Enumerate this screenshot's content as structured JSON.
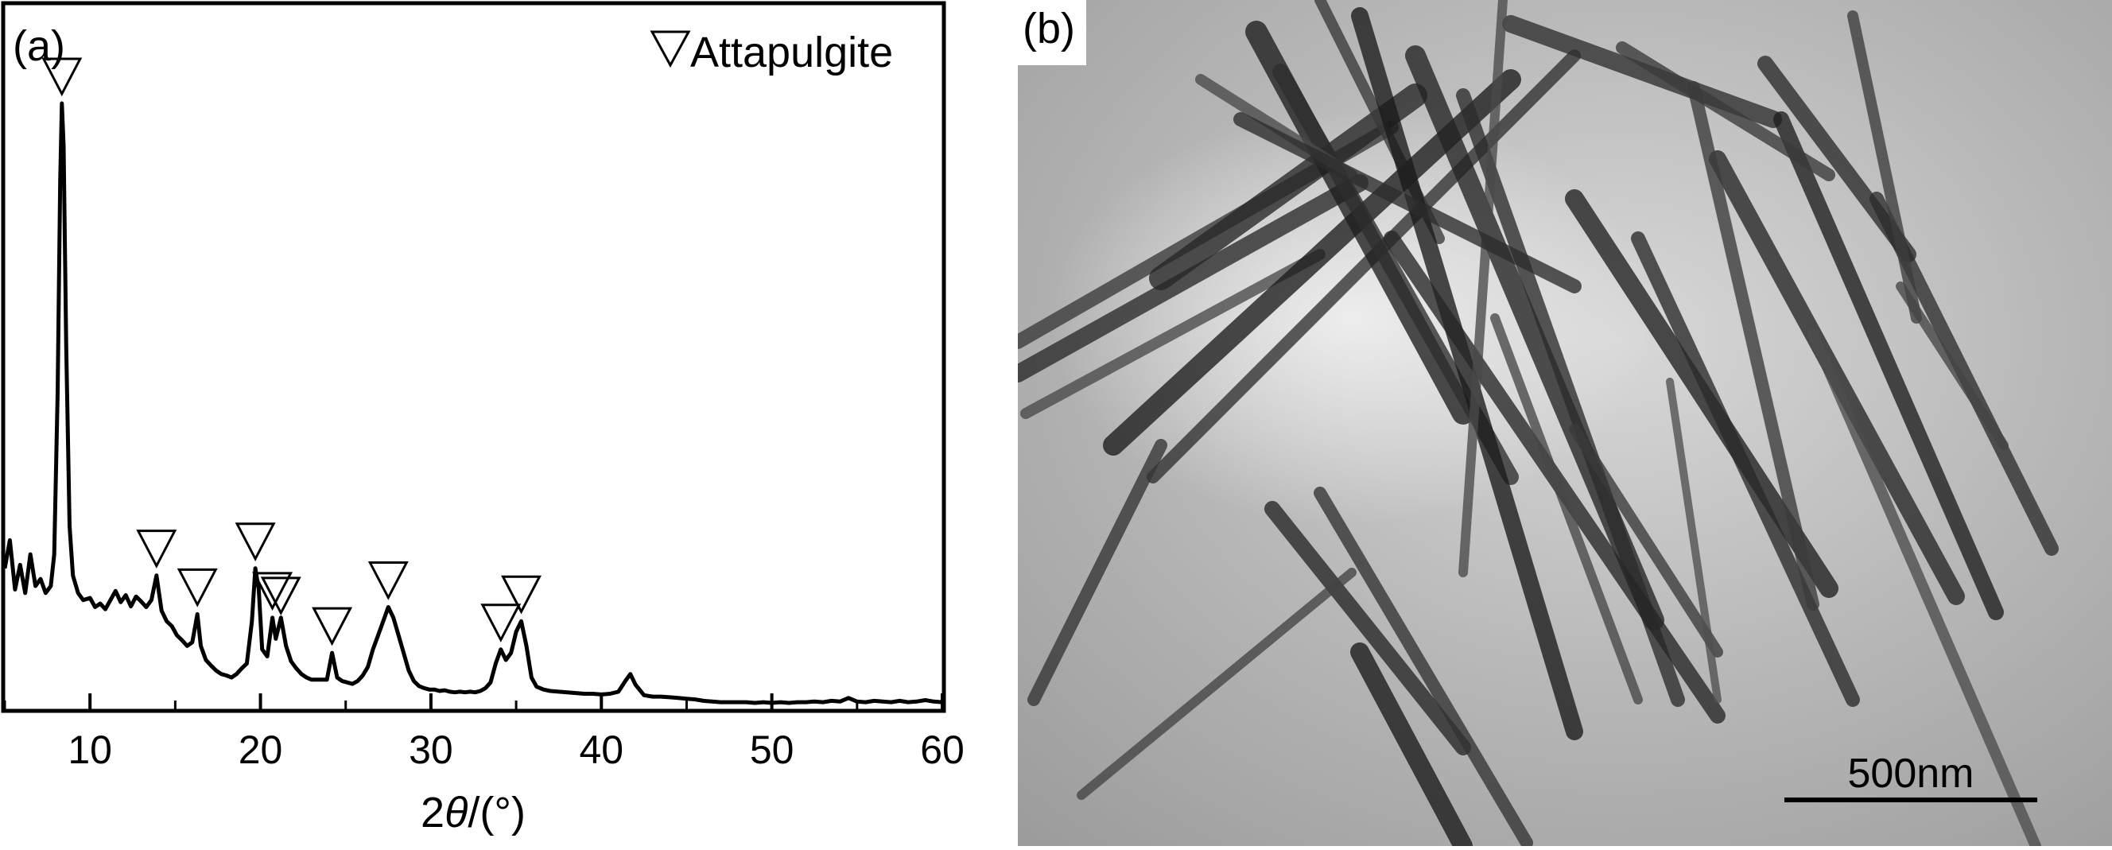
{
  "panel_a": {
    "label": "(a)",
    "chart_data": {
      "type": "line",
      "title": "",
      "xlabel_prefix": "2",
      "xlabel_symbol": "θ",
      "xlabel_suffix": "/(°)",
      "ylabel": "",
      "xlim": [
        5,
        60
      ],
      "ylim": [
        0,
        100
      ],
      "x_ticks": [
        10,
        20,
        30,
        40,
        50,
        60
      ],
      "grid": false,
      "legend": {
        "position": "top-right",
        "marker": "open-down-triangle",
        "text": "Attapulgite"
      },
      "series": [
        {
          "values": [
            [
              5.0,
              20.0
            ],
            [
              5.3,
              24.0
            ],
            [
              5.6,
              17.0
            ],
            [
              5.9,
              20.5
            ],
            [
              6.2,
              16.5
            ],
            [
              6.5,
              22.0
            ],
            [
              6.8,
              17.5
            ],
            [
              7.1,
              18.5
            ],
            [
              7.4,
              16.5
            ],
            [
              7.7,
              17.5
            ],
            [
              7.9,
              22.0
            ],
            [
              8.1,
              45.0
            ],
            [
              8.25,
              75.0
            ],
            [
              8.35,
              86.0
            ],
            [
              8.45,
              80.0
            ],
            [
              8.6,
              52.0
            ],
            [
              8.8,
              26.0
            ],
            [
              9.0,
              19.0
            ],
            [
              9.3,
              16.5
            ],
            [
              9.6,
              15.5
            ],
            [
              10.0,
              15.8
            ],
            [
              10.3,
              14.5
            ],
            [
              10.6,
              15.0
            ],
            [
              10.9,
              14.2
            ],
            [
              11.2,
              15.5
            ],
            [
              11.5,
              16.8
            ],
            [
              11.8,
              15.2
            ],
            [
              12.1,
              16.2
            ],
            [
              12.4,
              14.6
            ],
            [
              12.7,
              16.0
            ],
            [
              13.0,
              15.3
            ],
            [
              13.3,
              14.5
            ],
            [
              13.6,
              15.5
            ],
            [
              13.9,
              19.0
            ],
            [
              14.2,
              14.0
            ],
            [
              14.5,
              12.5
            ],
            [
              14.8,
              11.8
            ],
            [
              15.1,
              10.5
            ],
            [
              15.4,
              9.8
            ],
            [
              15.7,
              9.0
            ],
            [
              16.0,
              9.5
            ],
            [
              16.3,
              13.5
            ],
            [
              16.5,
              9.0
            ],
            [
              16.8,
              7.0
            ],
            [
              17.1,
              6.2
            ],
            [
              17.4,
              5.5
            ],
            [
              17.7,
              5.0
            ],
            [
              18.0,
              4.8
            ],
            [
              18.3,
              4.5
            ],
            [
              18.6,
              5.0
            ],
            [
              18.9,
              5.8
            ],
            [
              19.2,
              6.5
            ],
            [
              19.5,
              12.5
            ],
            [
              19.7,
              20.0
            ],
            [
              19.9,
              17.0
            ],
            [
              20.1,
              8.5
            ],
            [
              20.4,
              7.5
            ],
            [
              20.7,
              13.0
            ],
            [
              20.9,
              10.0
            ],
            [
              21.2,
              13.0
            ],
            [
              21.5,
              9.0
            ],
            [
              21.8,
              6.8
            ],
            [
              22.1,
              5.8
            ],
            [
              22.4,
              5.0
            ],
            [
              22.7,
              4.5
            ],
            [
              23.0,
              4.2
            ],
            [
              23.3,
              4.2
            ],
            [
              23.6,
              4.2
            ],
            [
              23.9,
              4.2
            ],
            [
              24.2,
              8.0
            ],
            [
              24.5,
              4.5
            ],
            [
              24.8,
              4.0
            ],
            [
              25.1,
              3.8
            ],
            [
              25.4,
              3.6
            ],
            [
              25.7,
              4.0
            ],
            [
              26.0,
              4.8
            ],
            [
              26.3,
              6.0
            ],
            [
              26.6,
              8.5
            ],
            [
              26.9,
              10.5
            ],
            [
              27.2,
              12.5
            ],
            [
              27.5,
              14.5
            ],
            [
              27.8,
              13.0
            ],
            [
              28.1,
              10.5
            ],
            [
              28.4,
              8.0
            ],
            [
              28.7,
              5.5
            ],
            [
              29.0,
              4.0
            ],
            [
              29.3,
              3.3
            ],
            [
              29.6,
              3.0
            ],
            [
              29.9,
              2.8
            ],
            [
              30.2,
              2.8
            ],
            [
              30.5,
              2.6
            ],
            [
              30.8,
              2.7
            ],
            [
              31.1,
              2.5
            ],
            [
              31.4,
              2.4
            ],
            [
              31.7,
              2.5
            ],
            [
              32.0,
              2.4
            ],
            [
              32.3,
              2.5
            ],
            [
              32.6,
              2.4
            ],
            [
              32.9,
              2.6
            ],
            [
              33.2,
              3.0
            ],
            [
              33.5,
              3.8
            ],
            [
              33.8,
              6.5
            ],
            [
              34.1,
              8.5
            ],
            [
              34.4,
              7.0
            ],
            [
              34.7,
              8.0
            ],
            [
              35.0,
              11.0
            ],
            [
              35.3,
              12.5
            ],
            [
              35.6,
              9.0
            ],
            [
              35.9,
              4.5
            ],
            [
              36.2,
              3.2
            ],
            [
              36.6,
              2.8
            ],
            [
              37.0,
              2.6
            ],
            [
              37.5,
              2.5
            ],
            [
              38.0,
              2.4
            ],
            [
              38.5,
              2.3
            ],
            [
              39.0,
              2.2
            ],
            [
              39.5,
              2.2
            ],
            [
              40.0,
              2.1
            ],
            [
              40.5,
              2.2
            ],
            [
              41.0,
              2.5
            ],
            [
              41.4,
              4.0
            ],
            [
              41.7,
              5.0
            ],
            [
              42.0,
              3.5
            ],
            [
              42.5,
              2.0
            ],
            [
              43.0,
              1.8
            ],
            [
              43.5,
              1.8
            ],
            [
              44.0,
              1.7
            ],
            [
              44.5,
              1.6
            ],
            [
              45.0,
              1.5
            ],
            [
              45.5,
              1.4
            ],
            [
              46.0,
              1.2
            ],
            [
              46.5,
              1.1
            ],
            [
              47.0,
              1.0
            ],
            [
              47.5,
              1.0
            ],
            [
              48.0,
              1.0
            ],
            [
              48.5,
              1.0
            ],
            [
              49.0,
              0.9
            ],
            [
              49.5,
              1.0
            ],
            [
              50.0,
              0.9
            ],
            [
              50.5,
              1.0
            ],
            [
              51.0,
              0.9
            ],
            [
              51.5,
              1.0
            ],
            [
              52.0,
              1.0
            ],
            [
              52.5,
              1.1
            ],
            [
              53.0,
              1.0
            ],
            [
              53.5,
              1.2
            ],
            [
              54.0,
              1.1
            ],
            [
              54.5,
              1.6
            ],
            [
              55.0,
              1.1
            ],
            [
              55.5,
              1.0
            ],
            [
              56.0,
              1.2
            ],
            [
              56.5,
              1.1
            ],
            [
              57.0,
              1.0
            ],
            [
              57.5,
              1.2
            ],
            [
              58.0,
              1.0
            ],
            [
              58.5,
              1.1
            ],
            [
              59.0,
              1.3
            ],
            [
              59.5,
              1.1
            ],
            [
              60.0,
              1.0
            ]
          ]
        }
      ],
      "annotations": {
        "marker": "open-down-triangle",
        "peaks": [
          {
            "x": 8.35,
            "y": 86.0,
            "offset": 0
          },
          {
            "x": 13.9,
            "y": 19.0,
            "offset": 0
          },
          {
            "x": 16.3,
            "y": 13.5,
            "offset": 0
          },
          {
            "x": 19.7,
            "y": 20.0,
            "offset": 0
          },
          {
            "x": 20.7,
            "y": 13.0,
            "offset": 0
          },
          {
            "x": 21.2,
            "y": 13.0,
            "offset": -1
          },
          {
            "x": 24.2,
            "y": 8.0,
            "offset": 0
          },
          {
            "x": 27.5,
            "y": 14.5,
            "offset": 0
          },
          {
            "x": 34.1,
            "y": 8.5,
            "offset": 0
          },
          {
            "x": 35.3,
            "y": 12.5,
            "offset": 0
          }
        ]
      }
    }
  },
  "panel_b": {
    "label": "(b)",
    "image_description": "Transmission electron micrograph of rod-like attapulgite nanofibers",
    "scale_bar_label": "500nm",
    "colors": {
      "background": "#a8a8a8",
      "fiber_dark": "#1a1a1a",
      "fiber_mid": "#4a4a4a",
      "halo": "#dcdcdc"
    }
  }
}
